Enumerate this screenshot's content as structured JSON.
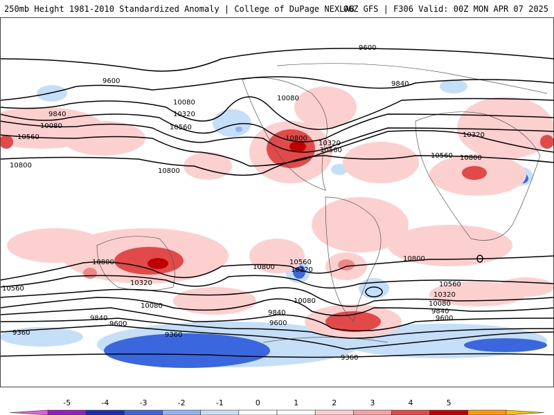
{
  "header": {
    "left_title": "250mb Height 1981-2010 Standardized Anomaly | College of DuPage NEXLAB",
    "right_title": "06Z GFS | F306 Valid: 00Z MON APR 07 2025"
  },
  "colors": {
    "pos1": "#fdd0d0",
    "pos2": "#f28686",
    "pos3": "#e24a4a",
    "pos4": "#c00000",
    "neg1": "#c6dff8",
    "neg2": "#8fb4f0",
    "neg3": "#3a67dd",
    "neg4": "#1a2fb0",
    "contour": "#000000",
    "land_border": "#555555"
  },
  "contour_labels": [
    "9600",
    "9600",
    "9840",
    "9840",
    "10080",
    "10080",
    "10080",
    "10320",
    "10320",
    "10560",
    "10560",
    "10560",
    "10800",
    "10800",
    "10800",
    "10800",
    "10560",
    "10320",
    "10800",
    "10560",
    "10320",
    "10800",
    "10560",
    "10320",
    "10080",
    "9840",
    "9600",
    "9360",
    "9360",
    "9360",
    "10080",
    "10800",
    "10560",
    "10320",
    "10080",
    "9840",
    "9600"
  ],
  "colorbar": {
    "tick_labels": [
      "-5",
      "-4",
      "-3",
      "-2",
      "-1",
      "0",
      "1",
      "2",
      "3",
      "4",
      "5"
    ],
    "bin_colors": [
      "#e060e0",
      "#9020c0",
      "#1a2fb0",
      "#3a67dd",
      "#8fb4f0",
      "#c6dff8",
      "#ffffff",
      "#ffffff",
      "#fdd0d0",
      "#f5a3a3",
      "#e24a4a",
      "#c00000",
      "#ff9900",
      "#ffc000"
    ]
  }
}
